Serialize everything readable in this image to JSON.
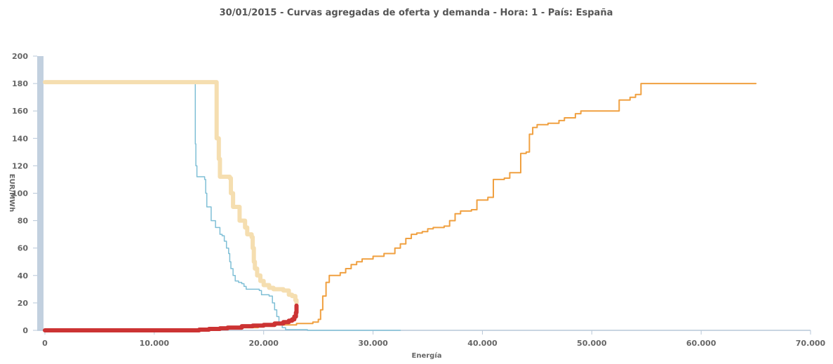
{
  "chart_data": {
    "type": "line",
    "title": "30/01/2015 - Curvas agregadas de oferta y demanda - Hora: 1 - País: España",
    "xlabel": "Energía",
    "ylabel": "EUR/MWh",
    "xlim": [
      0,
      70000
    ],
    "ylim": [
      0,
      200
    ],
    "x_ticks": [
      0,
      10000,
      20000,
      30000,
      40000,
      50000,
      60000,
      70000
    ],
    "x_tick_labels": [
      "0",
      "10.000",
      "20.000",
      "30.000",
      "40.000",
      "50.000",
      "60.000",
      "70.000"
    ],
    "y_ticks": [
      0,
      20,
      40,
      60,
      80,
      100,
      120,
      140,
      160,
      180,
      200
    ],
    "y_tick_labels": [
      "0",
      "20",
      "40",
      "60",
      "80",
      "100",
      "120",
      "140",
      "160",
      "180",
      "200"
    ],
    "grid": false,
    "legend": "none",
    "series": [
      {
        "color": "#7fbfd6",
        "width": 1.5,
        "step": true,
        "points": [
          [
            0,
            180
          ],
          [
            13700,
            180
          ],
          [
            13750,
            136
          ],
          [
            13800,
            120
          ],
          [
            13900,
            112
          ],
          [
            14600,
            110
          ],
          [
            14700,
            100
          ],
          [
            14800,
            90
          ],
          [
            15100,
            90
          ],
          [
            15200,
            80
          ],
          [
            15600,
            75
          ],
          [
            16000,
            70
          ],
          [
            16200,
            69
          ],
          [
            16400,
            65
          ],
          [
            16600,
            60
          ],
          [
            16800,
            56
          ],
          [
            16900,
            50
          ],
          [
            17000,
            45
          ],
          [
            17200,
            40
          ],
          [
            17400,
            36
          ],
          [
            17700,
            35
          ],
          [
            18000,
            34
          ],
          [
            18200,
            32
          ],
          [
            18400,
            30
          ],
          [
            19600,
            29
          ],
          [
            19800,
            26
          ],
          [
            20500,
            25
          ],
          [
            20800,
            20
          ],
          [
            21000,
            15
          ],
          [
            21200,
            10
          ],
          [
            21400,
            5
          ],
          [
            21700,
            2
          ],
          [
            22000,
            0.5
          ],
          [
            24000,
            0
          ],
          [
            32500,
            0
          ]
        ]
      },
      {
        "color": "#f5deb0",
        "width": 6,
        "step": true,
        "points": [
          [
            0,
            181
          ],
          [
            15600,
            181
          ],
          [
            15700,
            140
          ],
          [
            15900,
            125
          ],
          [
            16000,
            112
          ],
          [
            16900,
            111
          ],
          [
            17000,
            100
          ],
          [
            17200,
            90
          ],
          [
            17800,
            80
          ],
          [
            18300,
            75
          ],
          [
            18500,
            70
          ],
          [
            18900,
            68
          ],
          [
            19000,
            60
          ],
          [
            19100,
            50
          ],
          [
            19200,
            45
          ],
          [
            19400,
            40
          ],
          [
            19700,
            36
          ],
          [
            20000,
            33
          ],
          [
            20500,
            31
          ],
          [
            20900,
            30
          ],
          [
            21800,
            29
          ],
          [
            22300,
            26
          ],
          [
            22600,
            25
          ],
          [
            22900,
            22
          ],
          [
            23000,
            20
          ]
        ]
      },
      {
        "color": "#f0a040",
        "width": 2,
        "step": true,
        "points": [
          [
            0,
            0
          ],
          [
            14000,
            0
          ],
          [
            15000,
            1
          ],
          [
            17000,
            2
          ],
          [
            19500,
            3
          ],
          [
            21000,
            4
          ],
          [
            23000,
            5
          ],
          [
            24500,
            6
          ],
          [
            25000,
            8
          ],
          [
            25200,
            15
          ],
          [
            25400,
            25
          ],
          [
            25700,
            35
          ],
          [
            26000,
            40
          ],
          [
            27000,
            42
          ],
          [
            27500,
            45
          ],
          [
            28000,
            48
          ],
          [
            28500,
            50
          ],
          [
            29000,
            52
          ],
          [
            30000,
            54
          ],
          [
            31000,
            56
          ],
          [
            32000,
            60
          ],
          [
            32500,
            63
          ],
          [
            33000,
            67
          ],
          [
            33500,
            70
          ],
          [
            34000,
            71
          ],
          [
            34500,
            72
          ],
          [
            35000,
            74
          ],
          [
            35500,
            75
          ],
          [
            36500,
            76
          ],
          [
            37000,
            80
          ],
          [
            37500,
            85
          ],
          [
            38000,
            87
          ],
          [
            39000,
            88
          ],
          [
            39500,
            95
          ],
          [
            40500,
            97
          ],
          [
            41000,
            110
          ],
          [
            42000,
            111
          ],
          [
            42500,
            115
          ],
          [
            43000,
            115
          ],
          [
            43500,
            129
          ],
          [
            44000,
            130
          ],
          [
            44300,
            143
          ],
          [
            44600,
            148
          ],
          [
            45000,
            150
          ],
          [
            46000,
            151
          ],
          [
            47000,
            153
          ],
          [
            47500,
            155
          ],
          [
            48500,
            158
          ],
          [
            49000,
            160
          ],
          [
            50000,
            160
          ],
          [
            51000,
            160
          ],
          [
            52500,
            168
          ],
          [
            53500,
            170
          ],
          [
            54000,
            172
          ],
          [
            54500,
            180
          ],
          [
            57000,
            180
          ],
          [
            58000,
            180
          ],
          [
            65000,
            180
          ]
        ]
      },
      {
        "color": "#cc3333",
        "width": 6,
        "step": true,
        "points": [
          [
            0,
            0
          ],
          [
            14000,
            0
          ],
          [
            14100,
            0.5
          ],
          [
            15000,
            1
          ],
          [
            16000,
            1.5
          ],
          [
            16700,
            2
          ],
          [
            18000,
            3
          ],
          [
            19000,
            3.5
          ],
          [
            20000,
            4
          ],
          [
            21000,
            5
          ],
          [
            21800,
            6
          ],
          [
            22300,
            7
          ],
          [
            22600,
            8
          ],
          [
            22800,
            10
          ],
          [
            22950,
            13
          ],
          [
            23000,
            18
          ]
        ]
      }
    ]
  }
}
